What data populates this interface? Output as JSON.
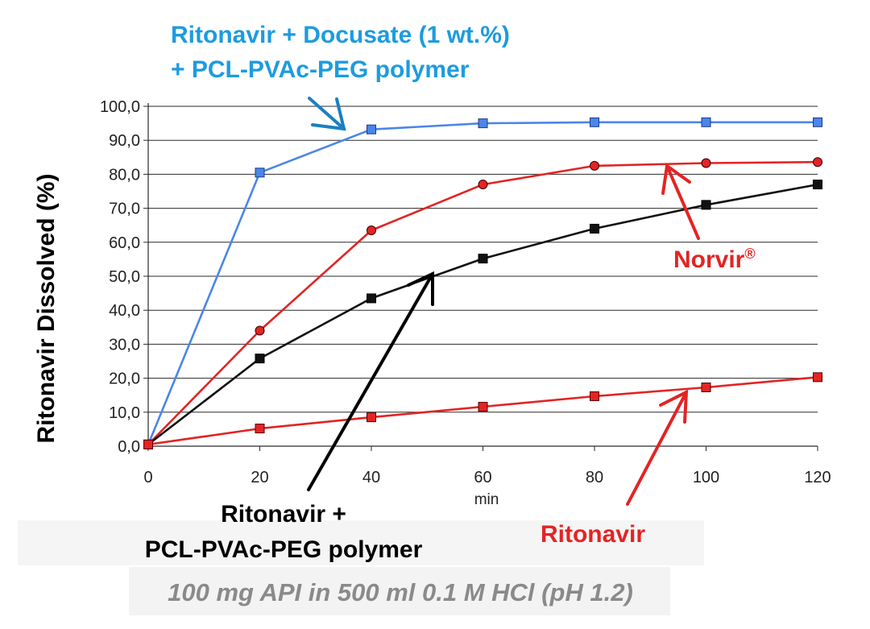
{
  "chart_data": {
    "type": "line",
    "title": "",
    "xlabel": "",
    "x_unit": "min",
    "ylabel": "Ritonavir Dissolved (%)",
    "xlim": [
      0,
      120
    ],
    "ylim": [
      0,
      100
    ],
    "x_ticks": [
      0,
      20,
      40,
      60,
      80,
      100,
      120
    ],
    "y_ticks": [
      "0,0",
      "10,0",
      "20,0",
      "30,0",
      "40,0",
      "50,0",
      "60,0",
      "70,0",
      "80,0",
      "90,0",
      "100,0"
    ],
    "grid": "horizontal",
    "series": [
      {
        "name": "Ritonavir + Docusate (1 wt.%) + PCL-PVAc-PEG polymer",
        "color": "#4a86e8",
        "marker": "square",
        "x": [
          0,
          20,
          40,
          60,
          80,
          100,
          120
        ],
        "y": [
          0.5,
          80.5,
          93.2,
          95.0,
          95.3,
          95.3,
          95.3
        ]
      },
      {
        "name": "Norvir®",
        "color": "#e32424",
        "marker": "circle",
        "x": [
          0,
          20,
          40,
          60,
          80,
          100,
          120
        ],
        "y": [
          0.5,
          34.0,
          63.5,
          77.0,
          82.5,
          83.3,
          83.6
        ]
      },
      {
        "name": "Ritonavir + PCL-PVAc-PEG polymer",
        "color": "#111111",
        "marker": "square",
        "x": [
          0,
          20,
          40,
          60,
          80,
          100,
          120
        ],
        "y": [
          0.5,
          25.8,
          43.5,
          55.2,
          64.0,
          71.0,
          77.0
        ]
      },
      {
        "name": "Ritonavir",
        "color": "#e32424",
        "marker": "square",
        "x": [
          0,
          20,
          40,
          60,
          80,
          100,
          120
        ],
        "y": [
          0.5,
          5.2,
          8.5,
          11.6,
          14.7,
          17.3,
          20.3
        ]
      }
    ]
  },
  "annotations": {
    "docusate_line1": "Ritonavir + Docusate (1 wt.%)",
    "docusate_line2": "+ PCL-PVAc-PEG polymer",
    "norvir": "Norvir",
    "norvir_sup": "®",
    "polymer_line1": "Ritonavir +",
    "polymer_line2": "PCL-PVAc-PEG polymer",
    "ritonavir": "Ritonavir"
  },
  "footnote": "100 mg API in 500 ml 0.1 M HCl (pH 1.2)",
  "colors": {
    "blue_text": "#1d9be0",
    "red": "#e32424",
    "black": "#000000",
    "footnote_bg": "#f3f3f3"
  }
}
